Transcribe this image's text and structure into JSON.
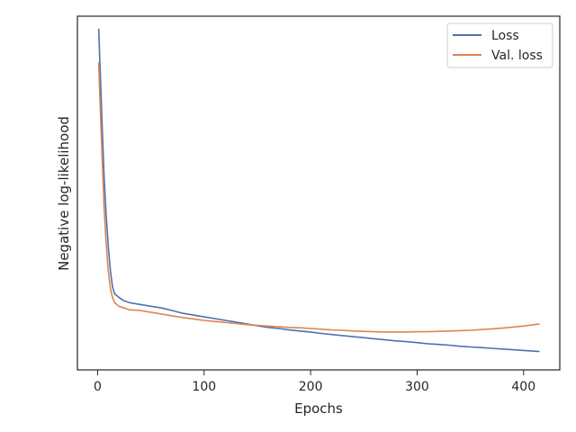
{
  "chart_data": {
    "type": "line",
    "title": "",
    "xlabel": "Epochs",
    "ylabel": "Negative log-likelihood",
    "xlim": [
      -19,
      434
    ],
    "ylim": [
      0,
      1.0
    ],
    "xticks": [
      0,
      100,
      200,
      300,
      400
    ],
    "yticks_shown": false,
    "grid": false,
    "legend_position": "top-right",
    "series": [
      {
        "name": "Loss",
        "color": "#4c72b0",
        "x": [
          1,
          2,
          3,
          4,
          5,
          6,
          8,
          10,
          12,
          14,
          16,
          20,
          25,
          30,
          40,
          50,
          60,
          70,
          80,
          90,
          100,
          110,
          120,
          130,
          140,
          150,
          160,
          170,
          180,
          190,
          200,
          210,
          220,
          230,
          240,
          250,
          260,
          270,
          280,
          290,
          300,
          310,
          320,
          330,
          340,
          350,
          360,
          370,
          380,
          390,
          400,
          410,
          415
        ],
        "y": [
          0.965,
          0.88,
          0.8,
          0.71,
          0.63,
          0.55,
          0.44,
          0.35,
          0.28,
          0.235,
          0.215,
          0.205,
          0.195,
          0.19,
          0.185,
          0.18,
          0.175,
          0.168,
          0.16,
          0.155,
          0.15,
          0.145,
          0.14,
          0.135,
          0.13,
          0.125,
          0.12,
          0.117,
          0.113,
          0.11,
          0.107,
          0.103,
          0.1,
          0.097,
          0.094,
          0.091,
          0.088,
          0.085,
          0.082,
          0.08,
          0.077,
          0.074,
          0.072,
          0.07,
          0.067,
          0.065,
          0.063,
          0.061,
          0.059,
          0.057,
          0.055,
          0.053,
          0.052
        ]
      },
      {
        "name": "Val. loss",
        "color": "#dd8452",
        "x": [
          1,
          2,
          3,
          4,
          5,
          6,
          8,
          10,
          12,
          14,
          16,
          20,
          25,
          30,
          40,
          50,
          60,
          70,
          80,
          90,
          100,
          110,
          120,
          130,
          140,
          150,
          160,
          170,
          180,
          190,
          200,
          210,
          220,
          230,
          240,
          250,
          260,
          270,
          280,
          290,
          300,
          310,
          320,
          330,
          340,
          350,
          360,
          370,
          380,
          390,
          400,
          410,
          415
        ],
        "y": [
          0.87,
          0.78,
          0.7,
          0.62,
          0.54,
          0.46,
          0.36,
          0.28,
          0.23,
          0.205,
          0.19,
          0.18,
          0.175,
          0.17,
          0.168,
          0.163,
          0.158,
          0.153,
          0.148,
          0.144,
          0.14,
          0.137,
          0.134,
          0.131,
          0.128,
          0.126,
          0.124,
          0.122,
          0.12,
          0.119,
          0.117,
          0.115,
          0.113,
          0.112,
          0.11,
          0.109,
          0.108,
          0.107,
          0.107,
          0.107,
          0.108,
          0.108,
          0.109,
          0.11,
          0.111,
          0.112,
          0.114,
          0.116,
          0.118,
          0.121,
          0.124,
          0.128,
          0.13
        ]
      }
    ]
  }
}
